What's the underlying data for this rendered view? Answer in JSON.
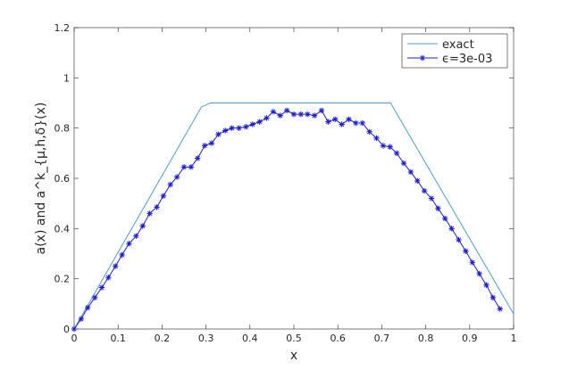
{
  "chart_data": {
    "type": "line",
    "xlabel": "x",
    "ylabel": "a(x) and a^k_{μ,h,δ}(x)",
    "xlim": [
      0,
      1
    ],
    "ylim": [
      0,
      1.2
    ],
    "xticks": [
      0,
      0.1,
      0.2,
      0.3,
      0.4,
      0.5,
      0.6,
      0.7,
      0.8,
      0.9,
      1
    ],
    "yticks": [
      0,
      0.2,
      0.4,
      0.6,
      0.8,
      1,
      1.2
    ],
    "legend": "upper right",
    "series": [
      {
        "name": "exact",
        "color": "#4a9fd0",
        "marker": "none",
        "x": [
          0,
          0.29,
          0.31,
          0.72,
          1
        ],
        "values": [
          0,
          0.885,
          0.9,
          0.9,
          0.06
        ]
      },
      {
        "name": "ϵ=3e-03",
        "color": "#1f1fd0",
        "marker": "star",
        "x": [
          0,
          0.016,
          0.031,
          0.047,
          0.063,
          0.078,
          0.094,
          0.109,
          0.125,
          0.141,
          0.156,
          0.172,
          0.188,
          0.203,
          0.219,
          0.234,
          0.25,
          0.266,
          0.281,
          0.297,
          0.313,
          0.328,
          0.344,
          0.359,
          0.375,
          0.391,
          0.406,
          0.422,
          0.438,
          0.453,
          0.469,
          0.484,
          0.5,
          0.516,
          0.531,
          0.547,
          0.563,
          0.578,
          0.594,
          0.609,
          0.625,
          0.641,
          0.656,
          0.672,
          0.688,
          0.703,
          0.719,
          0.734,
          0.75,
          0.766,
          0.781,
          0.797,
          0.813,
          0.828,
          0.844,
          0.859,
          0.875,
          0.891,
          0.906,
          0.922,
          0.938,
          0.953,
          0.969
        ],
        "values": [
          0,
          0.04,
          0.085,
          0.125,
          0.165,
          0.205,
          0.25,
          0.295,
          0.34,
          0.37,
          0.41,
          0.46,
          0.485,
          0.53,
          0.575,
          0.605,
          0.645,
          0.645,
          0.68,
          0.73,
          0.74,
          0.775,
          0.79,
          0.8,
          0.8,
          0.805,
          0.815,
          0.825,
          0.84,
          0.865,
          0.85,
          0.87,
          0.855,
          0.855,
          0.855,
          0.85,
          0.87,
          0.825,
          0.835,
          0.815,
          0.835,
          0.82,
          0.82,
          0.785,
          0.76,
          0.73,
          0.725,
          0.7,
          0.66,
          0.625,
          0.59,
          0.55,
          0.52,
          0.48,
          0.44,
          0.4,
          0.355,
          0.31,
          0.265,
          0.22,
          0.175,
          0.125,
          0.08
        ]
      }
    ]
  }
}
